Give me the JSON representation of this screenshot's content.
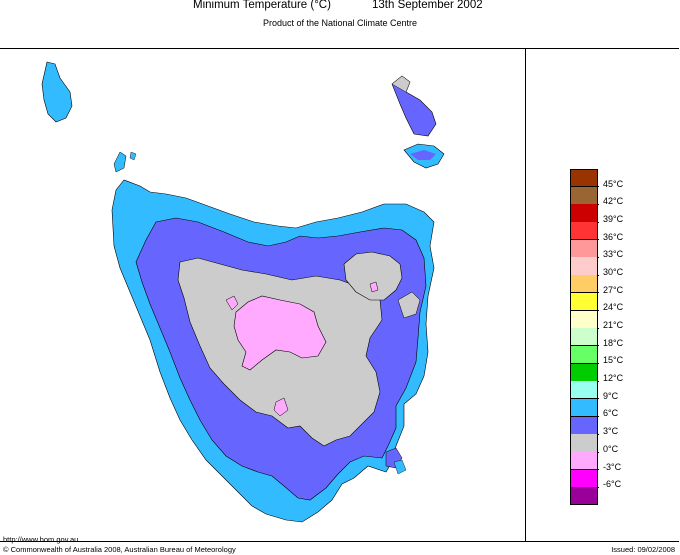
{
  "header": {
    "title": "Minimum Temperature (°C)",
    "date": "13th September 2002",
    "subtitle": "Product of the National Climate Centre"
  },
  "legend": {
    "items": [
      {
        "label": "45°C",
        "color": "#993300"
      },
      {
        "label": "42°C",
        "color": "#996633"
      },
      {
        "label": "39°C",
        "color": "#cc0000"
      },
      {
        "label": "36°C",
        "color": "#ff3333"
      },
      {
        "label": "33°C",
        "color": "#ff9999"
      },
      {
        "label": "30°C",
        "color": "#ffcccc"
      },
      {
        "label": "27°C",
        "color": "#ffcc66"
      },
      {
        "label": "24°C",
        "color": "#ffff33"
      },
      {
        "label": "21°C",
        "color": "#ffffcc"
      },
      {
        "label": "18°C",
        "color": "#ccffcc"
      },
      {
        "label": "15°C",
        "color": "#66ff66"
      },
      {
        "label": "12°C",
        "color": "#00cc00"
      },
      {
        "label": "9°C",
        "color": "#99ffee"
      },
      {
        "label": "6°C",
        "color": "#33bbff"
      },
      {
        "label": "3°C",
        "color": "#6666ff"
      },
      {
        "label": "0°C",
        "color": "#cccccc"
      },
      {
        "label": "-3°C",
        "color": "#ffaaff"
      },
      {
        "label": "-6°C",
        "color": "#ff00ff"
      },
      {
        "label": "",
        "color": "#990099"
      }
    ]
  },
  "map": {
    "region_colors": {
      "coast_band": "#33bbff",
      "inland_band": "#6666ff",
      "highland_band": "#cccccc",
      "plateau_band": "#ffaaff",
      "bass_strait_islands_grey": "#cccccc"
    }
  },
  "footer": {
    "url": "http://www.bom.gov.au",
    "copyright": "© Commonwealth of Australia 2008, Australian Bureau of Meteorology",
    "issued": "Issued: 09/02/2008"
  }
}
